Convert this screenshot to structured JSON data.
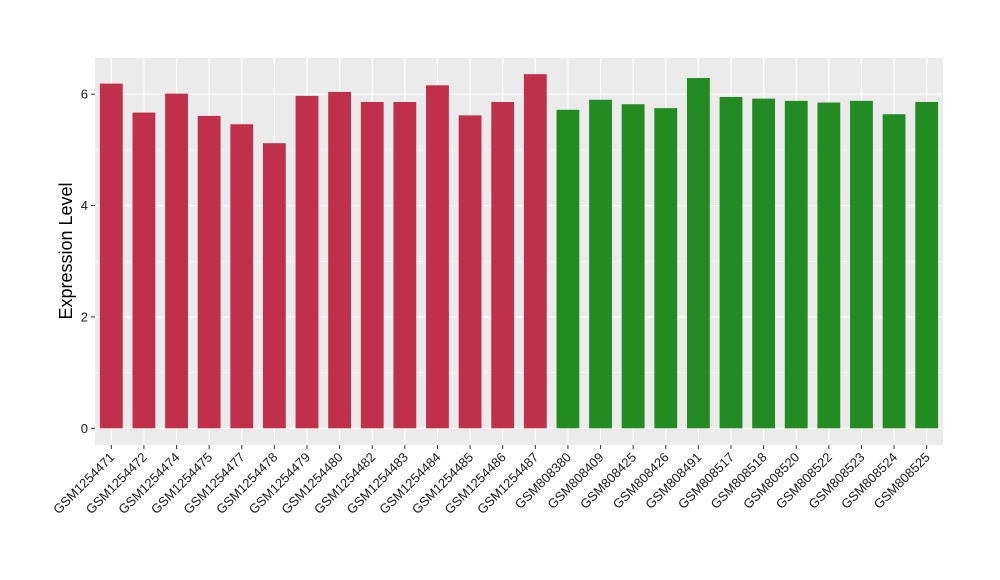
{
  "chart_data": {
    "type": "bar",
    "title": "",
    "xlabel": "",
    "ylabel": "Expression Level",
    "ylim": [
      -0.3,
      6.65
    ],
    "yticks": [
      0,
      2,
      4,
      6
    ],
    "grid": true,
    "categories": [
      "GSM1254471",
      "GSM1254472",
      "GSM1254474",
      "GSM1254475",
      "GSM1254477",
      "GSM1254478",
      "GSM1254479",
      "GSM1254480",
      "GSM1254482",
      "GSM1254483",
      "GSM1254484",
      "GSM1254485",
      "GSM1254486",
      "GSM1254487",
      "GSM808380",
      "GSM808409",
      "GSM808425",
      "GSM808426",
      "GSM808491",
      "GSM808517",
      "GSM808518",
      "GSM808520",
      "GSM808522",
      "GSM808523",
      "GSM808524",
      "GSM808525"
    ],
    "values": [
      6.19,
      5.67,
      6.01,
      5.61,
      5.46,
      5.12,
      5.97,
      6.04,
      5.86,
      5.86,
      6.16,
      5.62,
      5.86,
      6.36,
      5.72,
      5.9,
      5.82,
      5.75,
      6.29,
      5.95,
      5.92,
      5.88,
      5.85,
      5.88,
      5.64,
      5.86
    ],
    "bar_colors": [
      "#c1304a",
      "#c1304a",
      "#c1304a",
      "#c1304a",
      "#c1304a",
      "#c1304a",
      "#c1304a",
      "#c1304a",
      "#c1304a",
      "#c1304a",
      "#c1304a",
      "#c1304a",
      "#c1304a",
      "#c1304a",
      "#228b22",
      "#228b22",
      "#228b22",
      "#228b22",
      "#228b22",
      "#228b22",
      "#228b22",
      "#228b22",
      "#228b22",
      "#228b22",
      "#228b22",
      "#228b22"
    ],
    "panel_background": "#ebebeb",
    "grid_color": "#ffffff"
  }
}
